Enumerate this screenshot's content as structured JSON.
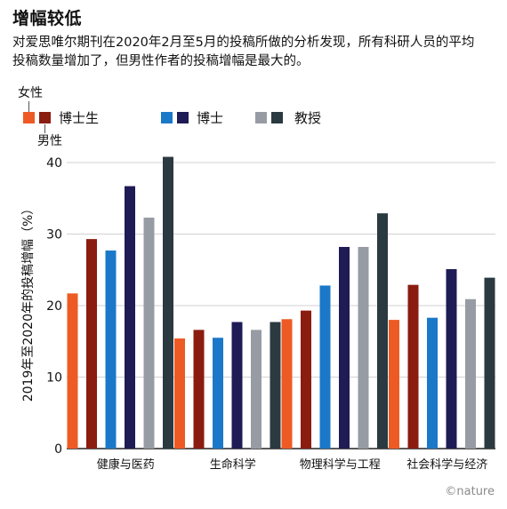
{
  "title": "增幅较低",
  "subtitle": "对爱思唯尔期刊在2020年2月至5月的投稿所做的分析发现，所有科研人员的平均投稿数量增加了，但男性作者的投稿增幅是最大的。",
  "legend": {
    "female_label": "女性",
    "male_label": "男性",
    "groups": [
      {
        "label": "博士生",
        "female_color": "#ee5a24",
        "male_color": "#8b1c10"
      },
      {
        "label": "博士",
        "female_color": "#1b78c9",
        "male_color": "#1e1b55"
      },
      {
        "label": "教授",
        "female_color": "#979ca4",
        "male_color": "#2b3940"
      }
    ]
  },
  "credit": "©nature",
  "chart_data": {
    "type": "bar",
    "ylabel": "2019年至2020年的投稿增幅（%）",
    "ylim": [
      0,
      40
    ],
    "yticks": [
      0,
      10,
      20,
      30,
      40
    ],
    "grid": true,
    "categories": [
      "健康与医药",
      "生命科学",
      "物理科学与工程",
      "社会科学与经济"
    ],
    "series": [
      {
        "name": "博士生 女性",
        "color": "#ee5a24",
        "values": [
          21.7,
          15.4,
          18.1,
          18.0
        ]
      },
      {
        "name": "博士生 男性",
        "color": "#8b1c10",
        "values": [
          29.3,
          16.6,
          19.3,
          22.9
        ]
      },
      {
        "name": "博士 女性",
        "color": "#1b78c9",
        "values": [
          27.7,
          15.5,
          22.8,
          18.3
        ]
      },
      {
        "name": "博士 男性",
        "color": "#1e1b55",
        "values": [
          36.7,
          17.7,
          28.2,
          25.1
        ]
      },
      {
        "name": "教授 女性",
        "color": "#979ca4",
        "values": [
          32.3,
          16.6,
          28.2,
          20.9
        ]
      },
      {
        "name": "教授 男性",
        "color": "#2b3940",
        "values": [
          40.8,
          17.7,
          32.9,
          23.9
        ]
      }
    ]
  }
}
